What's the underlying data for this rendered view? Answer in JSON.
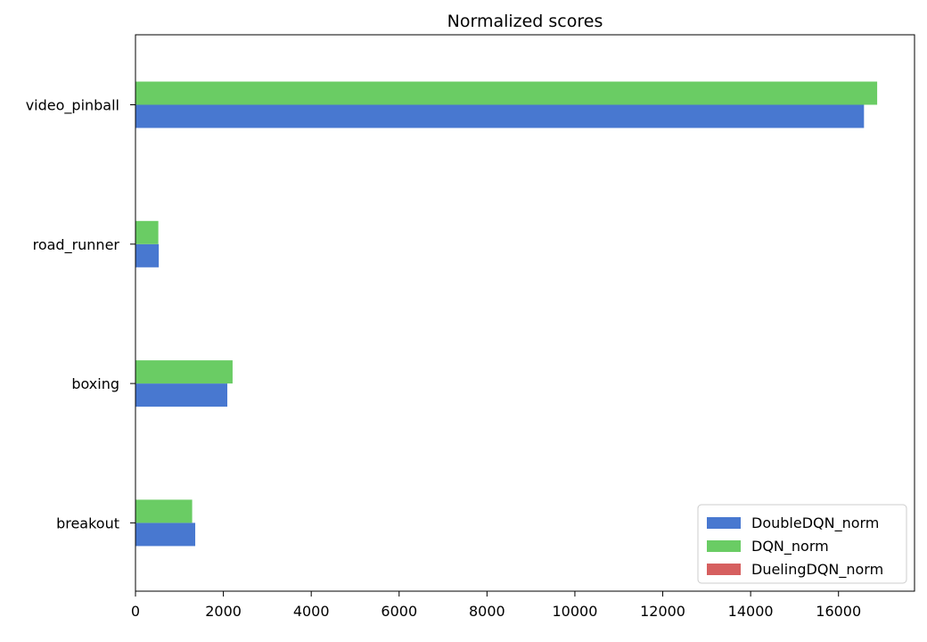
{
  "chart_data": {
    "type": "bar",
    "orientation": "horizontal",
    "title": "Normalized scores",
    "xlabel": "",
    "ylabel": "",
    "categories": [
      "video_pinball",
      "road_runner",
      "boxing",
      "breakout"
    ],
    "series": [
      {
        "name": "DoubleDQN_norm",
        "color": "#4878d0",
        "values": [
          16580,
          530,
          2090,
          1360
        ]
      },
      {
        "name": "DQN_norm",
        "color": "#6acc64",
        "values": [
          16880,
          520,
          2210,
          1290
        ]
      },
      {
        "name": "DuelingDQN_norm",
        "color": "#d65f5f",
        "values": [
          0,
          0,
          0,
          0
        ]
      }
    ],
    "xlim": [
      0,
      17730
    ],
    "xticks": [
      0,
      2000,
      4000,
      6000,
      8000,
      10000,
      12000,
      14000,
      16000
    ],
    "grid": false,
    "legend_position": "lower-right"
  }
}
